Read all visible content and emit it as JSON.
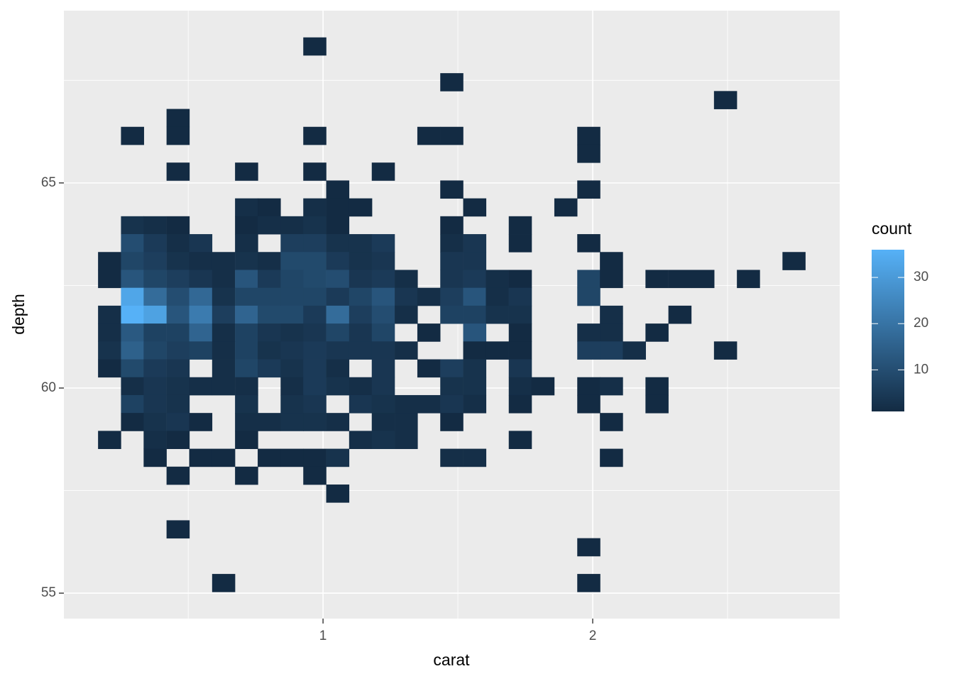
{
  "chart_data": {
    "type": "bin2d",
    "x_label": "carat",
    "y_label": "depth",
    "legend_title": "count",
    "xlim": [
      0.039,
      2.916
    ],
    "ylim": [
      54.38,
      69.2
    ],
    "xticks": [
      1,
      2
    ],
    "yticks": [
      55,
      60,
      65
    ],
    "xminor": [
      0.5,
      1.5,
      2.5
    ],
    "yminor": [
      57.5,
      62.5,
      67.5
    ],
    "grid": true,
    "binwidth": [
      0.0846,
      0.436
    ],
    "low_color": "#132B43",
    "high_color": "#56B1F7",
    "colorbar_lim": [
      1,
      36
    ],
    "colorbar_ticks": [
      10,
      20,
      30
    ],
    "x": [
      0.208,
      0.293,
      0.377,
      0.462,
      0.546,
      0.631,
      0.716,
      0.8,
      0.885,
      0.969,
      1.054,
      1.139,
      1.223,
      1.308,
      1.392,
      1.477,
      1.562,
      1.646,
      1.731,
      1.815,
      1.9,
      1.985,
      2.069,
      2.154,
      2.238,
      2.323,
      2.408,
      2.492,
      2.577,
      2.661,
      2.746
    ],
    "y": [
      68.33,
      67.894,
      67.458,
      67.022,
      66.586,
      66.15,
      65.714,
      65.278,
      64.842,
      64.406,
      63.97,
      63.534,
      63.098,
      62.662,
      62.226,
      61.79,
      61.354,
      60.918,
      60.482,
      60.046,
      59.61,
      59.174,
      58.738,
      58.302,
      57.866,
      57.43,
      56.994,
      56.558,
      56.122,
      55.686,
      55.25
    ],
    "values": [
      [
        null,
        null,
        null,
        null,
        null,
        null,
        null,
        null,
        null,
        1,
        null,
        null,
        null,
        null,
        null,
        null,
        null,
        null,
        null,
        null,
        null,
        null,
        null,
        null,
        null,
        null,
        null,
        null,
        null,
        null,
        null
      ],
      [
        null,
        null,
        null,
        null,
        null,
        null,
        null,
        null,
        null,
        null,
        null,
        null,
        null,
        null,
        null,
        null,
        null,
        null,
        null,
        null,
        null,
        null,
        null,
        null,
        null,
        null,
        null,
        null,
        null,
        null,
        null
      ],
      [
        null,
        null,
        null,
        null,
        null,
        null,
        null,
        null,
        null,
        null,
        null,
        null,
        null,
        null,
        null,
        1,
        null,
        null,
        null,
        null,
        null,
        null,
        null,
        null,
        null,
        null,
        null,
        null,
        null,
        null,
        null
      ],
      [
        null,
        null,
        null,
        null,
        null,
        null,
        null,
        null,
        null,
        null,
        null,
        null,
        null,
        null,
        null,
        null,
        null,
        null,
        null,
        null,
        null,
        null,
        null,
        null,
        null,
        null,
        null,
        1,
        null,
        null,
        null
      ],
      [
        null,
        null,
        null,
        1,
        null,
        null,
        null,
        null,
        null,
        null,
        null,
        null,
        null,
        null,
        null,
        null,
        null,
        null,
        null,
        null,
        null,
        null,
        null,
        null,
        null,
        null,
        null,
        null,
        null,
        null,
        null
      ],
      [
        null,
        1,
        null,
        1,
        null,
        null,
        null,
        null,
        null,
        1,
        null,
        null,
        null,
        null,
        1,
        1,
        null,
        null,
        null,
        null,
        null,
        1,
        null,
        null,
        null,
        null,
        null,
        null,
        null,
        null,
        null
      ],
      [
        null,
        null,
        null,
        null,
        null,
        null,
        null,
        null,
        null,
        null,
        null,
        null,
        null,
        null,
        null,
        null,
        null,
        null,
        null,
        null,
        null,
        1,
        null,
        null,
        null,
        null,
        null,
        null,
        null,
        null,
        null
      ],
      [
        null,
        null,
        null,
        1,
        null,
        null,
        1,
        null,
        null,
        1,
        null,
        null,
        1,
        null,
        null,
        null,
        null,
        null,
        null,
        null,
        null,
        null,
        null,
        null,
        null,
        null,
        null,
        null,
        null,
        null,
        null
      ],
      [
        null,
        null,
        null,
        null,
        null,
        null,
        null,
        null,
        null,
        null,
        1,
        null,
        null,
        null,
        null,
        1,
        null,
        null,
        null,
        null,
        null,
        1,
        null,
        null,
        null,
        null,
        null,
        null,
        null,
        null,
        null
      ],
      [
        null,
        null,
        null,
        null,
        null,
        null,
        2,
        1,
        null,
        2,
        1,
        1,
        null,
        null,
        null,
        null,
        1,
        null,
        null,
        null,
        1,
        null,
        null,
        null,
        null,
        null,
        null,
        null,
        null,
        null,
        null
      ],
      [
        null,
        3,
        2,
        1,
        null,
        null,
        1,
        2,
        2,
        3,
        1,
        null,
        null,
        null,
        null,
        1,
        null,
        null,
        1,
        null,
        null,
        null,
        null,
        null,
        null,
        null,
        null,
        null,
        null,
        null,
        null
      ],
      [
        null,
        10,
        5,
        2,
        4,
        null,
        2,
        null,
        6,
        6,
        3,
        3,
        5,
        null,
        null,
        2,
        4,
        null,
        1,
        null,
        null,
        1,
        null,
        null,
        null,
        null,
        null,
        null,
        null,
        null,
        null
      ],
      [
        1,
        8,
        6,
        3,
        2,
        2,
        3,
        2,
        9,
        9,
        5,
        3,
        4,
        null,
        null,
        4,
        4,
        null,
        null,
        null,
        null,
        null,
        1,
        null,
        null,
        null,
        null,
        null,
        null,
        null,
        1
      ],
      [
        1,
        12,
        8,
        6,
        4,
        2,
        12,
        5,
        8,
        9,
        10,
        4,
        5,
        2,
        null,
        4,
        5,
        2,
        1,
        null,
        null,
        8,
        1,
        null,
        1,
        1,
        1,
        null,
        1,
        null,
        null
      ],
      [
        null,
        33,
        18,
        10,
        17,
        3,
        8,
        8,
        8,
        8,
        5,
        8,
        12,
        4,
        2,
        6,
        12,
        2,
        4,
        null,
        null,
        8,
        null,
        null,
        null,
        null,
        null,
        null,
        null,
        null,
        null
      ],
      [
        2,
        36,
        32,
        12,
        22,
        6,
        16,
        9,
        9,
        5,
        18,
        6,
        10,
        2,
        null,
        7,
        7,
        3,
        3,
        null,
        null,
        null,
        2,
        null,
        null,
        1,
        null,
        null,
        null,
        null,
        null
      ],
      [
        2,
        13,
        7,
        7,
        16,
        2,
        7,
        4,
        3,
        4,
        8,
        4,
        8,
        null,
        1,
        null,
        12,
        null,
        1,
        null,
        null,
        2,
        2,
        null,
        1,
        null,
        null,
        null,
        null,
        null,
        null
      ],
      [
        3,
        15,
        8,
        6,
        7,
        2,
        7,
        3,
        4,
        5,
        4,
        4,
        4,
        2,
        null,
        null,
        1,
        1,
        1,
        null,
        null,
        6,
        6,
        2,
        null,
        null,
        null,
        1,
        null,
        null,
        null
      ],
      [
        1,
        9,
        5,
        4,
        null,
        2,
        8,
        5,
        3,
        5,
        2,
        null,
        4,
        null,
        1,
        6,
        3,
        null,
        4,
        null,
        null,
        null,
        null,
        null,
        null,
        null,
        null,
        null,
        null,
        null,
        null
      ],
      [
        null,
        2,
        4,
        3,
        2,
        2,
        2,
        null,
        2,
        5,
        3,
        2,
        4,
        null,
        null,
        3,
        3,
        null,
        2,
        1,
        null,
        1,
        2,
        null,
        1,
        null,
        null,
        null,
        null,
        null,
        null
      ],
      [
        null,
        7,
        4,
        3,
        null,
        null,
        3,
        null,
        3,
        4,
        null,
        4,
        3,
        2,
        2,
        4,
        2,
        null,
        1,
        null,
        null,
        1,
        null,
        null,
        1,
        null,
        null,
        null,
        null,
        null,
        null
      ],
      [
        null,
        1,
        3,
        4,
        1,
        null,
        2,
        2,
        3,
        3,
        2,
        null,
        2,
        2,
        null,
        1,
        null,
        null,
        null,
        null,
        null,
        null,
        1,
        null,
        null,
        null,
        null,
        null,
        null,
        null,
        null
      ],
      [
        1,
        null,
        2,
        1,
        null,
        null,
        1,
        null,
        null,
        null,
        null,
        2,
        3,
        2,
        null,
        null,
        null,
        null,
        1,
        null,
        null,
        null,
        null,
        null,
        null,
        null,
        null,
        null,
        null,
        null,
        null
      ],
      [
        null,
        null,
        1,
        null,
        1,
        1,
        null,
        1,
        1,
        1,
        3,
        null,
        null,
        null,
        null,
        2,
        2,
        null,
        null,
        null,
        null,
        null,
        1,
        null,
        null,
        null,
        null,
        null,
        null,
        null,
        null
      ],
      [
        null,
        null,
        null,
        1,
        null,
        null,
        1,
        null,
        null,
        1,
        null,
        null,
        null,
        null,
        null,
        null,
        null,
        null,
        null,
        null,
        null,
        null,
        null,
        null,
        null,
        null,
        null,
        null,
        null,
        null,
        null
      ],
      [
        null,
        null,
        null,
        null,
        null,
        null,
        null,
        null,
        null,
        null,
        1,
        null,
        null,
        null,
        null,
        null,
        null,
        null,
        null,
        null,
        null,
        null,
        null,
        null,
        null,
        null,
        null,
        null,
        null,
        null,
        null
      ],
      [
        null,
        null,
        null,
        null,
        null,
        null,
        null,
        null,
        null,
        null,
        null,
        null,
        null,
        null,
        null,
        null,
        null,
        null,
        null,
        null,
        null,
        null,
        null,
        null,
        null,
        null,
        null,
        null,
        null,
        null,
        null
      ],
      [
        null,
        null,
        null,
        1,
        null,
        null,
        null,
        null,
        null,
        null,
        null,
        null,
        null,
        null,
        null,
        null,
        null,
        null,
        null,
        null,
        null,
        null,
        null,
        null,
        null,
        null,
        null,
        null,
        null,
        null,
        null
      ],
      [
        null,
        null,
        null,
        null,
        null,
        null,
        null,
        null,
        null,
        null,
        null,
        null,
        null,
        null,
        null,
        null,
        null,
        null,
        null,
        null,
        null,
        1,
        null,
        null,
        null,
        null,
        null,
        null,
        null,
        null,
        null
      ],
      [
        null,
        null,
        null,
        null,
        null,
        null,
        null,
        null,
        null,
        null,
        null,
        null,
        null,
        null,
        null,
        null,
        null,
        null,
        null,
        null,
        null,
        null,
        null,
        null,
        null,
        null,
        null,
        null,
        null,
        null,
        null
      ],
      [
        null,
        null,
        null,
        null,
        null,
        1,
        null,
        null,
        null,
        null,
        null,
        null,
        null,
        null,
        null,
        null,
        null,
        null,
        null,
        null,
        null,
        1,
        null,
        null,
        null,
        null,
        null,
        null,
        null,
        null,
        null
      ]
    ]
  }
}
